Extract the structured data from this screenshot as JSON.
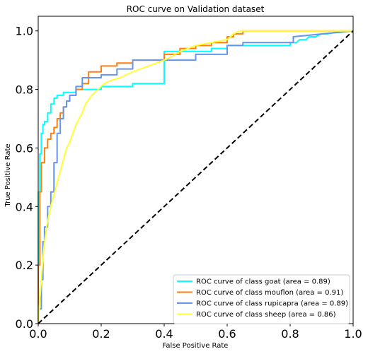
{
  "chart_data": {
    "type": "line",
    "title": "ROC curve on Validation dataset",
    "xlabel": "False Positive Rate",
    "ylabel": "True Positive Rate",
    "xlim": [
      0,
      1
    ],
    "ylim": [
      0,
      1.05
    ],
    "xticks": [
      0,
      0.2,
      0.4,
      0.6,
      0.8,
      1.0
    ],
    "yticks": [
      0,
      0.2,
      0.4,
      0.6,
      0.8,
      1.0
    ],
    "xtick_labels": [
      "0.0",
      "0.2",
      "0.4",
      "0.6",
      "0.8",
      "1.0"
    ],
    "ytick_labels": [
      "0.0",
      "0.2",
      "0.4",
      "0.6",
      "0.8",
      "1.0"
    ],
    "grid": false,
    "legend_position": "bottom-right",
    "diagonal": {
      "x": [
        0,
        1
      ],
      "y": [
        0,
        1
      ],
      "color": "#000000",
      "style": "dashed"
    },
    "series": [
      {
        "name": "ROC curve of class goat (area = 0.89)",
        "color": "#00ffff",
        "x": [
          0,
          0,
          0.005,
          0.005,
          0.01,
          0.01,
          0.015,
          0.015,
          0.02,
          0.02,
          0.03,
          0.03,
          0.04,
          0.04,
          0.05,
          0.05,
          0.06,
          0.06,
          0.08,
          0.08,
          0.12,
          0.12,
          0.2,
          0.2,
          0.3,
          0.3,
          0.4,
          0.4,
          0.55,
          0.55,
          0.6,
          0.6,
          0.8,
          0.8,
          0.82,
          0.83,
          0.85,
          0.86,
          0.88,
          0.9,
          0.92,
          0.94,
          0.96,
          0.98,
          1.0
        ],
        "y": [
          0,
          0.45,
          0.45,
          0.58,
          0.58,
          0.65,
          0.65,
          0.68,
          0.68,
          0.69,
          0.69,
          0.72,
          0.72,
          0.75,
          0.75,
          0.77,
          0.77,
          0.78,
          0.78,
          0.79,
          0.79,
          0.8,
          0.8,
          0.81,
          0.81,
          0.82,
          0.82,
          0.93,
          0.93,
          0.94,
          0.94,
          0.95,
          0.95,
          0.96,
          0.96,
          0.97,
          0.97,
          0.98,
          0.98,
          0.99,
          0.99,
          0.995,
          0.995,
          1.0,
          1.0
        ]
      },
      {
        "name": "ROC curve of class mouflon (area = 0.91)",
        "color": "#ff7f0e",
        "x": [
          0,
          0,
          0.005,
          0.005,
          0.01,
          0.01,
          0.02,
          0.02,
          0.03,
          0.03,
          0.04,
          0.04,
          0.05,
          0.05,
          0.06,
          0.06,
          0.07,
          0.07,
          0.08,
          0.08,
          0.09,
          0.09,
          0.1,
          0.1,
          0.12,
          0.12,
          0.14,
          0.14,
          0.16,
          0.16,
          0.2,
          0.2,
          0.25,
          0.25,
          0.3,
          0.3,
          0.4,
          0.4,
          0.45,
          0.45,
          0.5,
          0.5,
          0.55,
          0.55,
          0.6,
          0.6,
          0.62,
          0.62,
          0.65,
          0.65,
          1.0
        ],
        "y": [
          0,
          0.2,
          0.2,
          0.45,
          0.45,
          0.55,
          0.55,
          0.6,
          0.6,
          0.63,
          0.63,
          0.65,
          0.65,
          0.67,
          0.67,
          0.7,
          0.7,
          0.72,
          0.72,
          0.74,
          0.74,
          0.76,
          0.76,
          0.78,
          0.78,
          0.8,
          0.8,
          0.82,
          0.82,
          0.86,
          0.86,
          0.88,
          0.88,
          0.89,
          0.89,
          0.9,
          0.9,
          0.92,
          0.92,
          0.94,
          0.94,
          0.95,
          0.95,
          0.96,
          0.96,
          0.98,
          0.98,
          0.99,
          0.99,
          1.0,
          1.0
        ]
      },
      {
        "name": "ROC curve of class rupicapra (area = 0.89)",
        "color": "#6495ed",
        "x": [
          0,
          0,
          0.01,
          0.01,
          0.015,
          0.015,
          0.02,
          0.02,
          0.03,
          0.03,
          0.04,
          0.04,
          0.05,
          0.05,
          0.06,
          0.06,
          0.07,
          0.07,
          0.08,
          0.08,
          0.09,
          0.09,
          0.1,
          0.1,
          0.12,
          0.12,
          0.14,
          0.14,
          0.2,
          0.2,
          0.25,
          0.25,
          0.3,
          0.3,
          0.35,
          0.35,
          0.5,
          0.5,
          0.6,
          0.6,
          0.65,
          0.65,
          0.81,
          0.81,
          1.0
        ],
        "y": [
          0,
          0.05,
          0.05,
          0.15,
          0.15,
          0.28,
          0.28,
          0.33,
          0.33,
          0.4,
          0.4,
          0.45,
          0.45,
          0.55,
          0.55,
          0.65,
          0.65,
          0.7,
          0.7,
          0.74,
          0.74,
          0.76,
          0.76,
          0.78,
          0.78,
          0.81,
          0.81,
          0.84,
          0.84,
          0.85,
          0.85,
          0.87,
          0.87,
          0.9,
          0.9,
          0.9,
          0.9,
          0.92,
          0.92,
          0.95,
          0.95,
          0.96,
          0.96,
          0.98,
          1.0
        ]
      },
      {
        "name": "ROC curve of class sheep (area = 0.86)",
        "color": "#ffff33",
        "x": [
          0,
          0.005,
          0.01,
          0.015,
          0.02,
          0.03,
          0.04,
          0.05,
          0.06,
          0.07,
          0.08,
          0.09,
          0.1,
          0.11,
          0.12,
          0.13,
          0.14,
          0.15,
          0.17,
          0.19,
          0.21,
          0.23,
          0.26,
          0.3,
          0.35,
          0.4,
          0.42,
          0.45,
          0.5,
          0.55,
          0.6,
          0.62,
          0.64,
          0.66,
          0.7,
          0.75,
          0.8,
          0.85,
          0.9,
          0.95,
          1.0
        ],
        "y": [
          0,
          0.08,
          0.15,
          0.22,
          0.28,
          0.35,
          0.4,
          0.44,
          0.48,
          0.52,
          0.56,
          0.6,
          0.62,
          0.65,
          0.68,
          0.7,
          0.72,
          0.75,
          0.78,
          0.8,
          0.82,
          0.83,
          0.84,
          0.86,
          0.88,
          0.9,
          0.91,
          0.93,
          0.95,
          0.96,
          0.97,
          0.99,
          1.0,
          1.0,
          1.0,
          1.0,
          1.0,
          1.0,
          1.0,
          1.0,
          1.0
        ]
      }
    ]
  }
}
